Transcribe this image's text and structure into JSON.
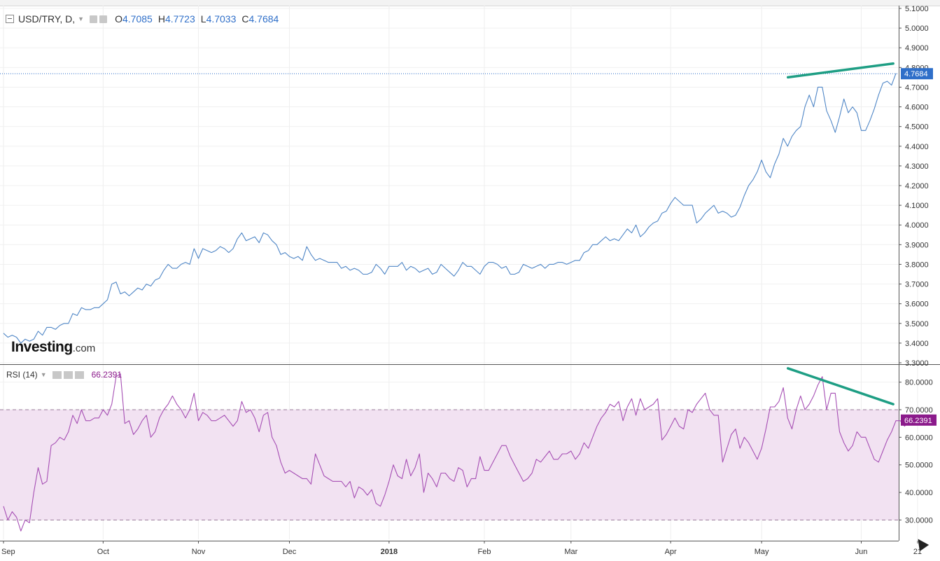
{
  "chart_data": [
    {
      "type": "line",
      "legend": {
        "symbol": "USD/TRY, D,",
        "open_label": "O",
        "open": "4.7085",
        "high_label": "H",
        "high": "4.7723",
        "low_label": "L",
        "low": "4.7033",
        "close_label": "C",
        "close": "4.7684"
      },
      "y_ticks": [
        "3.3000",
        "3.4000",
        "3.5000",
        "3.6000",
        "3.7000",
        "3.8000",
        "3.9000",
        "4.0000",
        "4.1000",
        "4.2000",
        "4.3000",
        "4.4000",
        "4.5000",
        "4.6000",
        "4.7000",
        "4.8000",
        "4.9000",
        "5.0000",
        "5.1000"
      ],
      "ylim": [
        3.3,
        5.1
      ],
      "last_price_label": "4.7684",
      "last_price": 4.7684,
      "watermark": "Investing",
      "watermark_suffix": ".com",
      "series": [
        {
          "color": "#4f86c6",
          "values": [
            3.45,
            3.43,
            3.44,
            3.43,
            3.4,
            3.42,
            3.41,
            3.42,
            3.46,
            3.44,
            3.48,
            3.48,
            3.47,
            3.49,
            3.5,
            3.5,
            3.55,
            3.54,
            3.58,
            3.57,
            3.57,
            3.58,
            3.58,
            3.6,
            3.62,
            3.7,
            3.71,
            3.65,
            3.66,
            3.64,
            3.66,
            3.68,
            3.67,
            3.7,
            3.69,
            3.72,
            3.73,
            3.77,
            3.8,
            3.78,
            3.78,
            3.8,
            3.81,
            3.8,
            3.88,
            3.83,
            3.88,
            3.87,
            3.86,
            3.87,
            3.89,
            3.88,
            3.86,
            3.88,
            3.93,
            3.96,
            3.92,
            3.93,
            3.94,
            3.91,
            3.96,
            3.95,
            3.92,
            3.9,
            3.85,
            3.86,
            3.84,
            3.83,
            3.84,
            3.82,
            3.89,
            3.85,
            3.82,
            3.83,
            3.82,
            3.81,
            3.81,
            3.81,
            3.78,
            3.79,
            3.77,
            3.78,
            3.77,
            3.75,
            3.75,
            3.76,
            3.8,
            3.78,
            3.75,
            3.79,
            3.79,
            3.79,
            3.81,
            3.77,
            3.79,
            3.78,
            3.76,
            3.77,
            3.78,
            3.75,
            3.76,
            3.8,
            3.78,
            3.76,
            3.74,
            3.77,
            3.81,
            3.79,
            3.79,
            3.77,
            3.75,
            3.79,
            3.81,
            3.81,
            3.8,
            3.78,
            3.79,
            3.75,
            3.75,
            3.76,
            3.8,
            3.79,
            3.78,
            3.79,
            3.8,
            3.78,
            3.8,
            3.8,
            3.81,
            3.81,
            3.8,
            3.81,
            3.82,
            3.82,
            3.86,
            3.87,
            3.9,
            3.9,
            3.92,
            3.94,
            3.92,
            3.93,
            3.92,
            3.95,
            3.98,
            3.96,
            4.0,
            3.94,
            3.96,
            3.99,
            4.01,
            4.02,
            4.06,
            4.07,
            4.11,
            4.14,
            4.12,
            4.1,
            4.1,
            4.1,
            4.01,
            4.03,
            4.06,
            4.08,
            4.1,
            4.06,
            4.07,
            4.06,
            4.04,
            4.05,
            4.09,
            4.15,
            4.2,
            4.23,
            4.27,
            4.33,
            4.27,
            4.24,
            4.31,
            4.36,
            4.44,
            4.4,
            4.45,
            4.48,
            4.5,
            4.6,
            4.66,
            4.6,
            4.7,
            4.7,
            4.58,
            4.53,
            4.47,
            4.55,
            4.64,
            4.57,
            4.6,
            4.57,
            4.48,
            4.48,
            4.53,
            4.59,
            4.66,
            4.72,
            4.73,
            4.71,
            4.77
          ]
        }
      ],
      "annotation_line": {
        "from": [
          0.879,
          4.75
        ],
        "to": [
          0.997,
          4.82
        ],
        "color": "#1e9e84"
      }
    },
    {
      "type": "line",
      "legend": {
        "label": "RSI (14)",
        "value": "66.2391"
      },
      "y_ticks": [
        "30.0000",
        "40.0000",
        "50.0000",
        "60.0000",
        "70.0000",
        "80.0000"
      ],
      "ylim": [
        23,
        86
      ],
      "band": [
        30,
        70
      ],
      "last_value_label": "66.2391",
      "last_value": 66.2391,
      "series": [
        {
          "color": "#a64fb4",
          "values": [
            35,
            30,
            33,
            31,
            26,
            30,
            29,
            40,
            49,
            43,
            44,
            57,
            58,
            60,
            59,
            62,
            68,
            65,
            70,
            66,
            66,
            67,
            67,
            70,
            68,
            72,
            82,
            83,
            65,
            66,
            61,
            63,
            66,
            68,
            60,
            62,
            67,
            70,
            72,
            75,
            72,
            70,
            67,
            70,
            76,
            66,
            69,
            68,
            66,
            66,
            67,
            68,
            66,
            64,
            66,
            73,
            69,
            70,
            67,
            62,
            68,
            69,
            60,
            57,
            51,
            47,
            48,
            47,
            46,
            45,
            45,
            43,
            54,
            50,
            46,
            45,
            44,
            44,
            44,
            42,
            44,
            38,
            42,
            41,
            39,
            41,
            36,
            35,
            39,
            44,
            50,
            46,
            45,
            52,
            46,
            49,
            54,
            40,
            47,
            45,
            42,
            47,
            47,
            45,
            44,
            49,
            48,
            42,
            45,
            45,
            53,
            48,
            48,
            51,
            54,
            57,
            57,
            53,
            50,
            47,
            44,
            45,
            47,
            52,
            51,
            53,
            55,
            52,
            52,
            54,
            54,
            55,
            52,
            54,
            58,
            56,
            60,
            64,
            67,
            69,
            72,
            71,
            73,
            66,
            71,
            74,
            68,
            74,
            70,
            71,
            72,
            74,
            59,
            61,
            64,
            67,
            64,
            63,
            70,
            69,
            72,
            74,
            76,
            70,
            68,
            68,
            51,
            56,
            61,
            63,
            56,
            60,
            58,
            55,
            52,
            56,
            63,
            71,
            71,
            73,
            78,
            67,
            63,
            70,
            75,
            70,
            72,
            75,
            79,
            82,
            70,
            76,
            76,
            62,
            58,
            55,
            57,
            62,
            60,
            60,
            56,
            52,
            51,
            55,
            59,
            62,
            66,
            66,
            64,
            66
          ]
        }
      ],
      "annotation_line": {
        "from": [
          0.879,
          85
        ],
        "to": [
          0.997,
          72
        ],
        "color": "#1e9e84"
      }
    }
  ],
  "x_axis": {
    "labels": [
      "Sep",
      "Oct",
      "Nov",
      "Dec",
      "2018",
      "Feb",
      "Mar",
      "Apr",
      "May",
      "Jun",
      "21"
    ],
    "label_idx": [
      0,
      23,
      45,
      66,
      89,
      111,
      131,
      154,
      175,
      198,
      211
    ]
  }
}
